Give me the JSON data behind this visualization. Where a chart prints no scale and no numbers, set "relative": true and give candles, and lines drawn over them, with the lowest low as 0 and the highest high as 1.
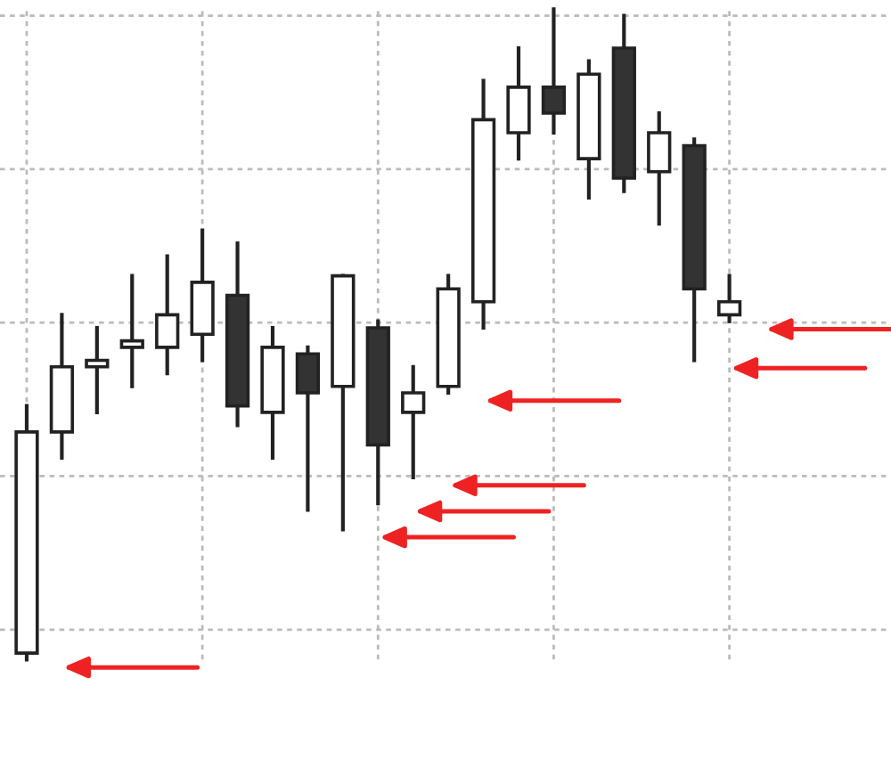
{
  "chart_data": {
    "type": "candlestick",
    "relative": true,
    "grid": true,
    "tick_labels": false,
    "categories": [
      null,
      null,
      null,
      null,
      null,
      null,
      null,
      null,
      null,
      null,
      null,
      null,
      null,
      null,
      null,
      null,
      null,
      null,
      null,
      null,
      null
    ],
    "ohlc": [
      [
        0.01,
        0.39,
        0,
        0.35
      ],
      [
        0.35,
        0.53,
        0.31,
        0.45
      ],
      [
        0.45,
        0.51,
        0.38,
        0.46
      ],
      [
        0.48,
        0.59,
        0.42,
        0.49
      ],
      [
        0.48,
        0.62,
        0.44,
        0.53
      ],
      [
        0.5,
        0.66,
        0.46,
        0.58
      ],
      [
        0.56,
        0.64,
        0.36,
        0.39
      ],
      [
        0.38,
        0.51,
        0.31,
        0.48
      ],
      [
        0.47,
        0.48,
        0.23,
        0.41
      ],
      [
        0.42,
        0.59,
        0.2,
        0.59
      ],
      [
        0.51,
        0.52,
        0.24,
        0.33
      ],
      [
        0.38,
        0.45,
        0.28,
        0.41
      ],
      [
        0.42,
        0.59,
        0.41,
        0.57
      ],
      [
        0.55,
        0.89,
        0.51,
        0.83
      ],
      [
        0.81,
        0.94,
        0.77,
        0.88
      ],
      [
        0.88,
        1.0,
        0.81,
        0.84
      ],
      [
        0.77,
        0.92,
        0.71,
        0.9
      ],
      [
        0.94,
        0.99,
        0.72,
        0.74
      ],
      [
        0.75,
        0.84,
        0.67,
        0.81
      ],
      [
        0.79,
        0.8,
        0.46,
        0.57
      ],
      [
        0.53,
        0.59,
        0.52,
        0.55
      ]
    ]
  }
}
